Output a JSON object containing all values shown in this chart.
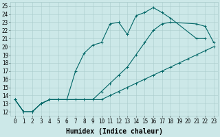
{
  "xlabel": "Humidex (Indice chaleur)",
  "bg_color": "#cce8e8",
  "line_color": "#006666",
  "xlim": [
    -0.5,
    23.5
  ],
  "ylim": [
    11.5,
    25.5
  ],
  "xticks": [
    0,
    1,
    2,
    3,
    4,
    5,
    6,
    7,
    8,
    9,
    10,
    11,
    12,
    13,
    14,
    15,
    16,
    17,
    18,
    19,
    20,
    21,
    22,
    23
  ],
  "yticks": [
    12,
    13,
    14,
    15,
    16,
    17,
    18,
    19,
    20,
    21,
    22,
    23,
    24,
    25
  ],
  "line1_x": [
    0,
    1,
    2,
    3,
    4,
    5,
    6,
    7,
    8,
    9,
    10,
    11,
    12,
    13,
    14,
    15,
    16,
    17,
    18,
    19,
    20,
    21,
    22,
    23
  ],
  "line1_y": [
    13.5,
    12.0,
    12.0,
    13.0,
    13.5,
    13.5,
    13.5,
    13.5,
    13.5,
    13.5,
    13.5,
    14.0,
    14.5,
    15.0,
    15.5,
    16.0,
    16.5,
    17.0,
    17.5,
    18.0,
    18.5,
    19.0,
    19.5,
    20.0
  ],
  "line2_x": [
    0,
    1,
    2,
    3,
    4,
    5,
    6,
    7,
    8,
    9,
    10,
    11,
    12,
    13,
    14,
    15,
    16,
    17,
    18,
    21,
    22,
    23
  ],
  "line2_y": [
    13.5,
    12.0,
    12.0,
    13.0,
    13.5,
    13.5,
    13.5,
    13.5,
    13.5,
    13.5,
    14.5,
    15.5,
    16.5,
    17.5,
    19.0,
    20.5,
    22.0,
    22.8,
    23.0,
    22.8,
    22.5,
    20.5
  ],
  "line3_x": [
    0,
    1,
    2,
    3,
    4,
    5,
    6,
    7,
    8,
    9,
    10,
    11,
    12,
    13,
    14,
    15,
    16,
    17,
    18,
    21,
    22
  ],
  "line3_y": [
    13.5,
    12.0,
    12.0,
    13.0,
    13.5,
    13.5,
    13.5,
    17.0,
    19.2,
    20.2,
    20.5,
    22.8,
    23.0,
    21.5,
    23.8,
    24.2,
    24.8,
    24.2,
    23.5,
    21.0,
    21.0
  ]
}
